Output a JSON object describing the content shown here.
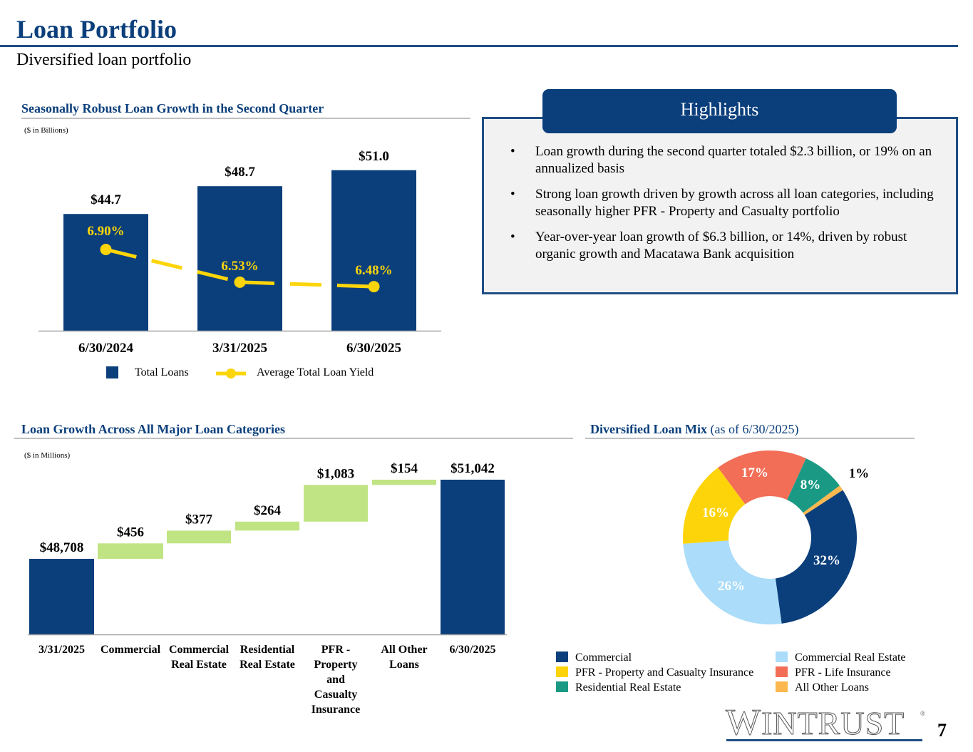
{
  "header": {
    "title": "Loan Portfolio",
    "subtitle": "Diversified loan portfolio"
  },
  "colors": {
    "brand_navy": "#0b3f7c",
    "waterfall_increase": "#c0e484",
    "yield_line": "#fcd50a",
    "rule_gray": "#c0c0c0"
  },
  "highlights": {
    "title": "Highlights",
    "bullet_glyph": "•",
    "items": [
      "Loan growth during the second quarter totaled $2.3 billion, or 19% on an annualized basis",
      "Strong loan growth driven by growth across all loan categories, including seasonally higher PFR - Property and Casualty portfolio",
      "Year-over-year loan growth of $6.3 billion, or 14%, driven by robust organic growth and Macatawa Bank acquisition"
    ]
  },
  "footer": {
    "logo_text_first": "W",
    "logo_text_rest": "INTRUST",
    "logo_reg": "®",
    "page_number": "7"
  },
  "chart_data": [
    {
      "type": "bar",
      "title": "Seasonally Robust Loan Growth in the Second Quarter",
      "unit_note": "($ in Billions)",
      "categories": [
        "6/30/2024",
        "3/31/2025",
        "6/30/2025"
      ],
      "series": [
        {
          "name": "Total Loans",
          "type": "bar",
          "color": "#0b3f7c",
          "values": [
            44.7,
            48.7,
            51.0
          ],
          "labels": [
            "$44.7",
            "$48.7",
            "$51.0"
          ]
        },
        {
          "name": "Average Total Loan Yield",
          "type": "line",
          "style": "dashed",
          "color": "#fcd50a",
          "values": [
            6.9,
            6.53,
            6.48
          ],
          "labels": [
            "6.90%",
            "6.53%",
            "6.48%"
          ]
        }
      ],
      "legend": [
        "Total Loans",
        "Average Total Loan Yield"
      ],
      "legend_position": "bottom",
      "grid": false,
      "xlabel": "",
      "ylabel": ""
    },
    {
      "type": "bar",
      "subtype": "waterfall",
      "title": "Loan Growth Across All Major Loan Categories",
      "unit_note": "($ in Millions)",
      "categories": [
        "3/31/2025",
        "Commercial",
        "Commercial Real Estate",
        "Residential Real Estate",
        "PFR - Property and Casualty Insurance",
        "All Other Loans",
        "6/30/2025"
      ],
      "category_lines": [
        [
          "3/31/2025"
        ],
        [
          "Commercial"
        ],
        [
          "Commercial",
          "Real Estate"
        ],
        [
          "Residential",
          "Real Estate"
        ],
        [
          "PFR -",
          "Property",
          "and",
          "Casualty",
          "Insurance"
        ],
        [
          "All Other",
          "Loans"
        ],
        [
          "6/30/2025"
        ]
      ],
      "values": [
        48708,
        456,
        377,
        264,
        1083,
        154,
        51042
      ],
      "kinds": [
        "total",
        "increase",
        "increase",
        "increase",
        "increase",
        "increase",
        "total"
      ],
      "labels": [
        "$48,708",
        "$456",
        "$377",
        "$264",
        "$1,083",
        "$154",
        "$51,042"
      ],
      "grid": false,
      "xlabel": "",
      "ylabel": ""
    },
    {
      "type": "pie",
      "subtype": "donut",
      "title": "Diversified Loan Mix",
      "title_suffix": "(as of 6/30/2025)",
      "slices": [
        {
          "name": "Commercial",
          "value": 32,
          "label": "32%",
          "color": "#0b3f7c",
          "label_color": "#ffffff"
        },
        {
          "name": "Commercial Real Estate",
          "value": 26,
          "label": "26%",
          "color": "#abdcf9",
          "label_color": "#ffffff"
        },
        {
          "name": "PFR - Property and Casualty Insurance",
          "value": 16,
          "label": "16%",
          "color": "#fdd40a",
          "label_color": "#ffffff"
        },
        {
          "name": "PFR - Life Insurance",
          "value": 17,
          "label": "17%",
          "color": "#f26e57",
          "label_color": "#ffffff"
        },
        {
          "name": "Residential Real Estate",
          "value": 8,
          "label": "8%",
          "color": "#1a9a84",
          "label_color": "#ffffff"
        },
        {
          "name": "All Other Loans",
          "value": 1,
          "label": "1%",
          "color": "#fbb84f",
          "label_color": "#000000"
        }
      ],
      "legend": [
        {
          "name": "Commercial",
          "color": "#0b3f7c"
        },
        {
          "name": "Commercial Real Estate",
          "color": "#abdcf9"
        },
        {
          "name": "PFR - Property and Casualty Insurance",
          "color": "#fdd40a"
        },
        {
          "name": "PFR - Life Insurance",
          "color": "#f26e57"
        },
        {
          "name": "Residential Real Estate",
          "color": "#1a9a84"
        },
        {
          "name": "All Other Loans",
          "color": "#fbb84f"
        }
      ],
      "legend_position": "bottom"
    }
  ]
}
